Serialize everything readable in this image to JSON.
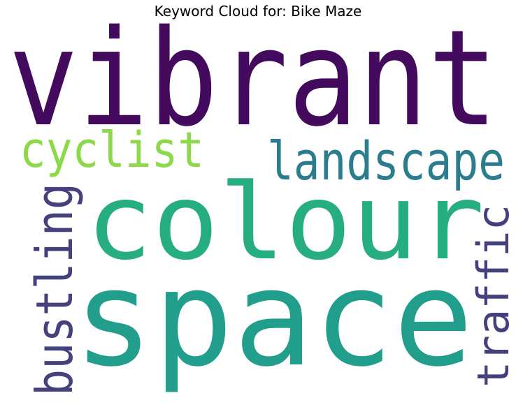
{
  "title": "Keyword Cloud for: Bike Maze",
  "words": [
    {
      "text": "vibrant",
      "color": "#440a5e"
    },
    {
      "text": "cyclist",
      "color": "#8cd94a"
    },
    {
      "text": "landscape",
      "color": "#2b7d8e"
    },
    {
      "text": "colour",
      "color": "#27ad82"
    },
    {
      "text": "space",
      "color": "#229e8c"
    },
    {
      "text": "bustling",
      "color": "#45417f"
    },
    {
      "text": "traffic",
      "color": "#45417f"
    }
  ]
}
